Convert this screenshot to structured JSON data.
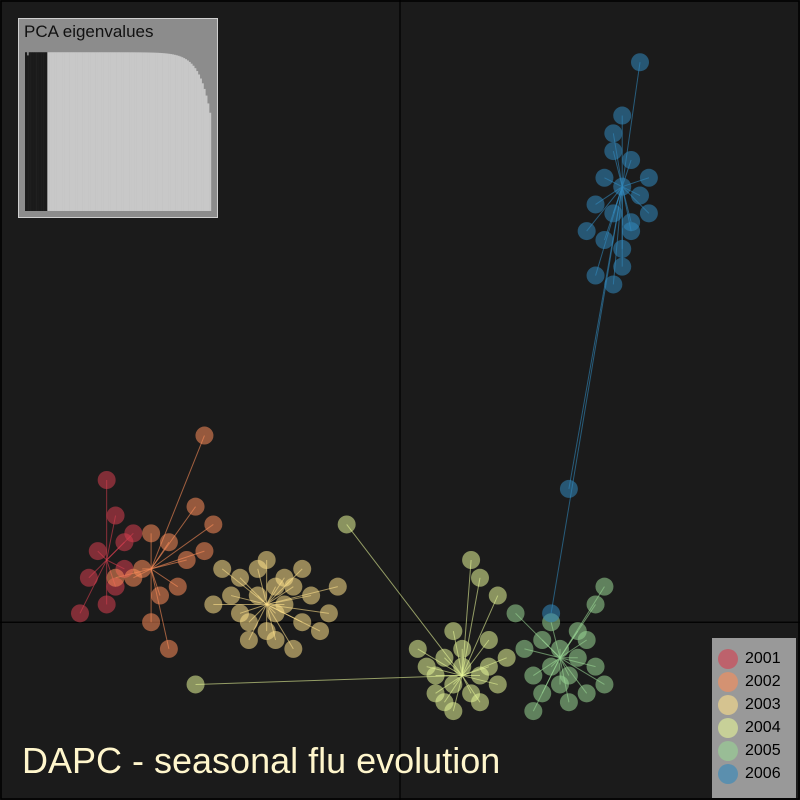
{
  "title": "DAPC - seasonal flu evolution",
  "inset": {
    "title": "PCA eigenvalues",
    "n_eigenvalues": 100,
    "n_retained": 12
  },
  "legend": {
    "placement": "bottom-right",
    "items": [
      {
        "label": "2001",
        "color": "#d53e4f"
      },
      {
        "label": "2002",
        "color": "#fc8d59"
      },
      {
        "label": "2003",
        "color": "#fee08b"
      },
      {
        "label": "2004",
        "color": "#e6f598"
      },
      {
        "label": "2005",
        "color": "#99d594"
      },
      {
        "label": "2006",
        "color": "#3288bd"
      }
    ]
  },
  "chart_data": {
    "type": "scatter",
    "title": "DAPC - seasonal flu evolution",
    "xlabel": "",
    "ylabel": "",
    "grid": false,
    "axes_lines": "cross at origin",
    "xlim": [
      -4.5,
      4.5
    ],
    "ylim": [
      -2,
      7
    ],
    "series": [
      {
        "name": "2001",
        "color": "#d53e4f",
        "centroid": [
          -3.3,
          0.7
        ],
        "points": [
          [
            -3.3,
            1.6
          ],
          [
            -3.2,
            1.2
          ],
          [
            -3.4,
            0.8
          ],
          [
            -3.1,
            0.6
          ],
          [
            -3.5,
            0.5
          ],
          [
            -3.2,
            0.4
          ],
          [
            -3.0,
            1.0
          ],
          [
            -3.3,
            0.2
          ],
          [
            -3.6,
            0.1
          ],
          [
            -3.1,
            0.9
          ]
        ]
      },
      {
        "name": "2002",
        "color": "#fc8d59",
        "centroid": [
          -2.8,
          0.6
        ],
        "points": [
          [
            -2.2,
            2.1
          ],
          [
            -2.8,
            1.0
          ],
          [
            -2.6,
            0.9
          ],
          [
            -2.9,
            0.6
          ],
          [
            -2.5,
            0.4
          ],
          [
            -2.3,
            1.3
          ],
          [
            -2.7,
            0.3
          ],
          [
            -3.0,
            0.5
          ],
          [
            -2.4,
            0.7
          ],
          [
            -3.2,
            0.5
          ],
          [
            -2.6,
            -0.3
          ],
          [
            -2.1,
            1.1
          ],
          [
            -2.8,
            0.0
          ],
          [
            -2.2,
            0.8
          ]
        ]
      },
      {
        "name": "2003",
        "color": "#fee08b",
        "centroid": [
          -1.5,
          0.2
        ],
        "points": [
          [
            -1.8,
            0.5
          ],
          [
            -1.6,
            0.3
          ],
          [
            -1.4,
            0.1
          ],
          [
            -1.2,
            0.4
          ],
          [
            -1.7,
            0.0
          ],
          [
            -1.5,
            -0.1
          ],
          [
            -1.3,
            0.2
          ],
          [
            -1.9,
            0.3
          ],
          [
            -1.1,
            0.0
          ],
          [
            -1.6,
            0.6
          ],
          [
            -1.4,
            -0.2
          ],
          [
            -1.0,
            0.3
          ],
          [
            -2.0,
            0.6
          ],
          [
            -1.2,
            -0.3
          ],
          [
            -1.5,
            0.7
          ],
          [
            -0.8,
            0.1
          ],
          [
            -2.1,
            0.2
          ],
          [
            -1.3,
            0.5
          ],
          [
            -1.7,
            -0.2
          ],
          [
            -0.9,
            -0.1
          ],
          [
            -1.1,
            0.6
          ],
          [
            -1.8,
            0.1
          ],
          [
            -1.4,
            0.4
          ],
          [
            -0.7,
            0.4
          ]
        ]
      },
      {
        "name": "2004",
        "color": "#e6f598",
        "centroid": [
          0.7,
          -0.6
        ],
        "points": [
          [
            0.8,
            0.7
          ],
          [
            0.9,
            0.5
          ],
          [
            0.6,
            -0.1
          ],
          [
            0.5,
            -0.4
          ],
          [
            0.7,
            -0.5
          ],
          [
            0.9,
            -0.6
          ],
          [
            0.6,
            -0.7
          ],
          [
            0.8,
            -0.8
          ],
          [
            0.5,
            -0.9
          ],
          [
            1.0,
            -0.5
          ],
          [
            0.4,
            -0.6
          ],
          [
            0.7,
            -0.3
          ],
          [
            1.1,
            -0.7
          ],
          [
            0.6,
            -1.0
          ],
          [
            0.3,
            -0.5
          ],
          [
            0.9,
            -0.9
          ],
          [
            1.2,
            -0.4
          ],
          [
            0.4,
            -0.8
          ],
          [
            -0.6,
            1.1
          ],
          [
            -2.3,
            -0.7
          ],
          [
            0.2,
            -0.3
          ],
          [
            1.0,
            -0.2
          ],
          [
            1.1,
            0.3
          ]
        ]
      },
      {
        "name": "2005",
        "color": "#99d594",
        "centroid": [
          1.8,
          -0.4
        ],
        "points": [
          [
            1.6,
            -0.2
          ],
          [
            1.8,
            -0.3
          ],
          [
            2.0,
            -0.4
          ],
          [
            1.7,
            -0.5
          ],
          [
            1.9,
            -0.6
          ],
          [
            2.1,
            -0.2
          ],
          [
            1.5,
            -0.6
          ],
          [
            1.8,
            -0.7
          ],
          [
            2.0,
            -0.1
          ],
          [
            1.6,
            -0.8
          ],
          [
            2.2,
            -0.5
          ],
          [
            1.7,
            0.0
          ],
          [
            1.9,
            -0.9
          ],
          [
            2.2,
            0.2
          ],
          [
            1.4,
            -0.3
          ],
          [
            2.3,
            -0.7
          ],
          [
            1.3,
            0.1
          ],
          [
            2.1,
            -0.8
          ],
          [
            1.5,
            -1.0
          ],
          [
            2.3,
            0.4
          ]
        ]
      },
      {
        "name": "2006",
        "color": "#3288bd",
        "centroid": [
          2.5,
          4.9
        ],
        "points": [
          [
            2.7,
            6.3
          ],
          [
            2.5,
            5.7
          ],
          [
            2.4,
            5.3
          ],
          [
            2.6,
            5.2
          ],
          [
            2.3,
            5.0
          ],
          [
            2.5,
            4.9
          ],
          [
            2.7,
            4.8
          ],
          [
            2.4,
            4.6
          ],
          [
            2.2,
            4.7
          ],
          [
            2.6,
            4.5
          ],
          [
            2.8,
            5.0
          ],
          [
            2.3,
            4.3
          ],
          [
            2.5,
            4.2
          ],
          [
            2.2,
            3.9
          ],
          [
            2.4,
            3.8
          ],
          [
            2.6,
            4.4
          ],
          [
            2.1,
            4.4
          ],
          [
            2.8,
            4.6
          ],
          [
            1.9,
            1.5
          ],
          [
            1.7,
            0.1
          ],
          [
            2.4,
            5.5
          ],
          [
            2.5,
            4.0
          ]
        ]
      }
    ]
  }
}
